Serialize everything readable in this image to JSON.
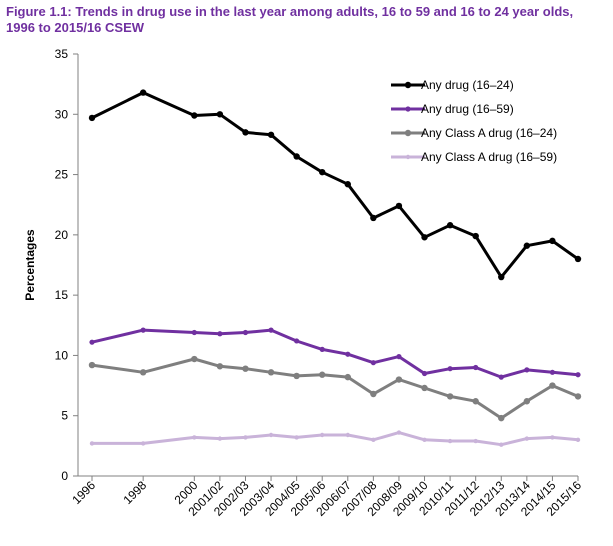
{
  "chart_data": {
    "type": "line",
    "title_line1": "Figure 1.1: Trends in drug use in the last year among adults, 16 to 59 and 16 to 24 year olds,",
    "title_line2": "1996 to 2015/16 CSEW",
    "title_color": "#7030a0",
    "ylabel": "Percentages",
    "ylim": [
      0,
      35
    ],
    "yticks": [
      0,
      5,
      10,
      15,
      20,
      25,
      30,
      35
    ],
    "grid": false,
    "legend_position": "top-right",
    "x_positions": [
      1996,
      1998,
      2000,
      2001,
      2002,
      2003,
      2004,
      2005,
      2006,
      2007,
      2008,
      2009,
      2010,
      2011,
      2012,
      2013,
      2014,
      2015
    ],
    "xmin": 1996,
    "xmax": 2015,
    "categories": [
      "1996",
      "1998",
      "2000",
      "2001/02",
      "2002/03",
      "2003/04",
      "2004/05",
      "2005/06",
      "2006/07",
      "2007/08",
      "2008/09",
      "2009/10",
      "2010/11",
      "2011/12",
      "2012/13",
      "2013/14",
      "2014/15",
      "2015/16"
    ],
    "series": [
      {
        "name": "Any drug (16–24)",
        "color": "#000000",
        "width": 3,
        "marker": 3.2,
        "values": [
          29.7,
          31.8,
          29.9,
          30.0,
          28.5,
          28.3,
          26.5,
          25.2,
          24.2,
          21.4,
          22.4,
          19.8,
          20.8,
          19.9,
          16.5,
          19.1,
          19.5,
          18.0
        ]
      },
      {
        "name": "Any drug (16–59)",
        "color": "#7030a0",
        "width": 3,
        "marker": 2.6,
        "values": [
          11.1,
          12.1,
          11.9,
          11.8,
          11.9,
          12.1,
          11.2,
          10.5,
          10.1,
          9.4,
          9.9,
          8.5,
          8.9,
          9.0,
          8.2,
          8.8,
          8.6,
          8.4
        ]
      },
      {
        "name": "Any Class A drug (16–24)",
        "color": "#7f7f7f",
        "width": 3,
        "marker": 3.2,
        "values": [
          9.2,
          8.6,
          9.7,
          9.1,
          8.9,
          8.6,
          8.3,
          8.4,
          8.2,
          6.8,
          8.0,
          7.3,
          6.6,
          6.2,
          4.8,
          6.2,
          7.5,
          6.6
        ]
      },
      {
        "name": "Any Class A drug (16–59)",
        "color": "#c9b3d9",
        "width": 3,
        "marker": 2.2,
        "values": [
          2.7,
          2.7,
          3.2,
          3.1,
          3.2,
          3.4,
          3.2,
          3.4,
          3.4,
          3.0,
          3.6,
          3.0,
          2.9,
          2.9,
          2.6,
          3.1,
          3.2,
          3.0
        ]
      }
    ]
  }
}
